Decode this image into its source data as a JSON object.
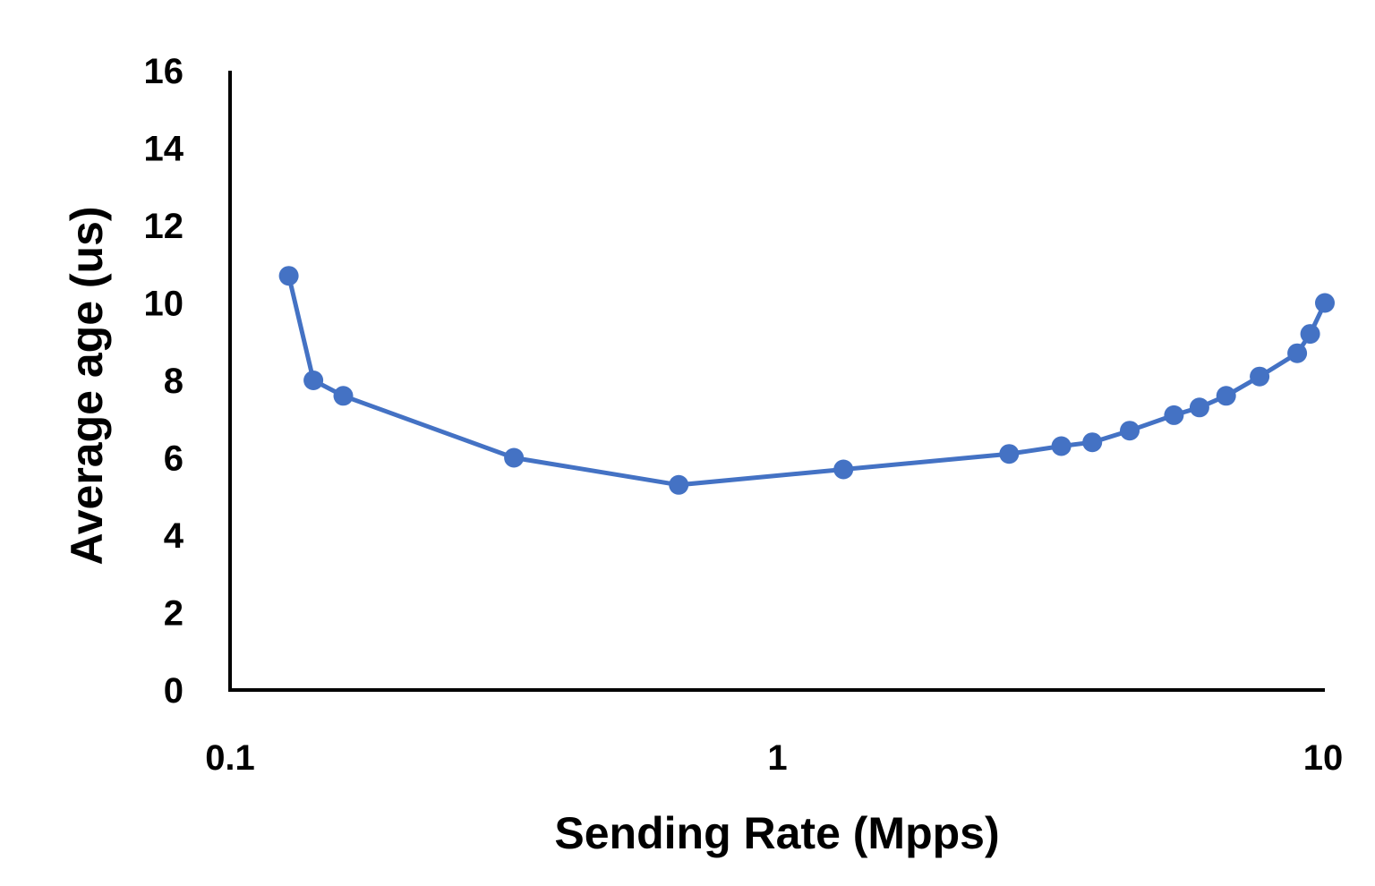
{
  "chart_data": {
    "type": "line",
    "xlabel": "Sending Rate (Mpps)",
    "ylabel": "Average age (us)",
    "x_scale": "log",
    "xlim": [
      0.1,
      10
    ],
    "ylim": [
      0,
      16
    ],
    "x_ticks": [
      "0.1",
      "1",
      "10"
    ],
    "y_ticks": [
      "0",
      "2",
      "4",
      "6",
      "8",
      "10",
      "12",
      "14",
      "16"
    ],
    "grid": false,
    "legend": "none",
    "series": [
      {
        "color": "#4472C4",
        "marker": "circle",
        "x": [
          0.128,
          0.142,
          0.161,
          0.33,
          0.66,
          1.32,
          2.65,
          3.3,
          3.76,
          4.4,
          5.3,
          5.9,
          6.6,
          7.6,
          8.9,
          9.4,
          10.0
        ],
        "y": [
          10.7,
          8.0,
          7.6,
          6.0,
          5.3,
          5.7,
          6.1,
          6.3,
          6.4,
          6.7,
          7.1,
          7.3,
          7.6,
          8.1,
          8.7,
          9.2,
          10.0
        ]
      }
    ]
  }
}
